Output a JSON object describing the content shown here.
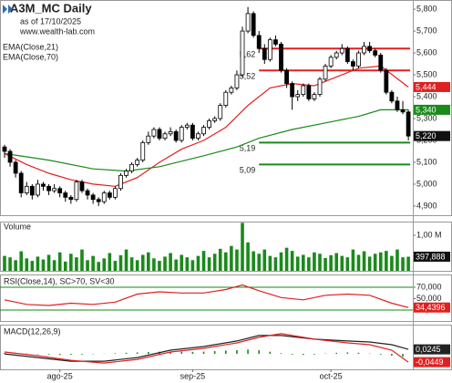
{
  "header": {
    "title": "A3M_MC Daily",
    "asof": "as of 17/10/2025",
    "site": "www.wealth-lab.com",
    "legend": [
      "EMA(Close,21)",
      "EMA(Close,70)"
    ]
  },
  "xlabels": [
    {
      "index": 10,
      "label": "ago-25"
    },
    {
      "index": 34,
      "label": "sep-25"
    },
    {
      "index": 59,
      "label": "oct-25"
    }
  ],
  "chart_data": [
    {
      "type": "candlestick",
      "ylim": [
        4.858,
        5.842
      ],
      "yticks": [
        {
          "value": 5.8,
          "label": "5,800"
        },
        {
          "value": 5.7,
          "label": "5,700"
        },
        {
          "value": 5.6,
          "label": "5,600"
        },
        {
          "value": 5.5,
          "label": "5,500"
        },
        {
          "value": 5.4,
          "label": "5,400"
        },
        {
          "value": 5.3,
          "label": "5,300"
        },
        {
          "value": 5.2,
          "label": "5,200"
        },
        {
          "value": 5.1,
          "label": "5,100"
        },
        {
          "value": 5.0,
          "label": "5,000"
        },
        {
          "value": 4.9,
          "label": "4,900"
        }
      ],
      "candles": [
        [
          5.17,
          5.18,
          5.12,
          5.15
        ],
        [
          5.15,
          5.16,
          5.08,
          5.1
        ],
        [
          5.1,
          5.11,
          5.03,
          5.05
        ],
        [
          5.05,
          5.06,
          4.94,
          4.96
        ],
        [
          4.96,
          5.01,
          4.95,
          4.99
        ],
        [
          4.99,
          5.0,
          4.93,
          4.95
        ],
        [
          4.95,
          5.02,
          4.94,
          5.0
        ],
        [
          5.0,
          5.01,
          4.97,
          4.99
        ],
        [
          4.99,
          5.0,
          4.95,
          4.97
        ],
        [
          4.97,
          5.0,
          4.96,
          4.98
        ],
        [
          4.98,
          4.99,
          4.94,
          4.96
        ],
        [
          4.96,
          4.97,
          4.92,
          4.94
        ],
        [
          4.94,
          4.95,
          4.91,
          4.93
        ],
        [
          4.93,
          5.02,
          4.92,
          5.01
        ],
        [
          5.01,
          5.02,
          4.96,
          4.97
        ],
        [
          4.97,
          4.98,
          4.93,
          4.95
        ],
        [
          4.95,
          4.96,
          4.91,
          4.93
        ],
        [
          4.93,
          4.94,
          4.9,
          4.92
        ],
        [
          4.92,
          4.97,
          4.91,
          4.96
        ],
        [
          4.96,
          4.97,
          4.93,
          4.94
        ],
        [
          4.94,
          4.99,
          4.93,
          4.98
        ],
        [
          4.98,
          5.05,
          4.97,
          5.04
        ],
        [
          5.04,
          5.07,
          5.03,
          5.06
        ],
        [
          5.06,
          5.1,
          5.05,
          5.09
        ],
        [
          5.09,
          5.12,
          5.08,
          5.11
        ],
        [
          5.11,
          5.2,
          5.1,
          5.19
        ],
        [
          5.19,
          5.24,
          5.18,
          5.22
        ],
        [
          5.22,
          5.26,
          5.21,
          5.25
        ],
        [
          5.25,
          5.26,
          5.2,
          5.21
        ],
        [
          5.21,
          5.24,
          5.2,
          5.23
        ],
        [
          5.23,
          5.26,
          5.22,
          5.24
        ],
        [
          5.24,
          5.25,
          5.19,
          5.2
        ],
        [
          5.2,
          5.27,
          5.19,
          5.26
        ],
        [
          5.26,
          5.28,
          5.25,
          5.27
        ],
        [
          5.27,
          5.28,
          5.2,
          5.21
        ],
        [
          5.21,
          5.24,
          5.2,
          5.23
        ],
        [
          5.23,
          5.27,
          5.22,
          5.26
        ],
        [
          5.26,
          5.3,
          5.25,
          5.29
        ],
        [
          5.29,
          5.31,
          5.28,
          5.3
        ],
        [
          5.3,
          5.37,
          5.29,
          5.36
        ],
        [
          5.36,
          5.43,
          5.35,
          5.42
        ],
        [
          5.42,
          5.45,
          5.41,
          5.44
        ],
        [
          5.44,
          5.52,
          5.43,
          5.5
        ],
        [
          5.5,
          5.72,
          5.49,
          5.7
        ],
        [
          5.7,
          5.81,
          5.69,
          5.78
        ],
        [
          5.78,
          5.79,
          5.67,
          5.68
        ],
        [
          5.68,
          5.7,
          5.6,
          5.62
        ],
        [
          5.62,
          5.64,
          5.55,
          5.57
        ],
        [
          5.57,
          5.67,
          5.56,
          5.66
        ],
        [
          5.66,
          5.68,
          5.63,
          5.64
        ],
        [
          5.64,
          5.65,
          5.51,
          5.52
        ],
        [
          5.52,
          5.53,
          5.44,
          5.46
        ],
        [
          5.46,
          5.47,
          5.34,
          5.4
        ],
        [
          5.4,
          5.43,
          5.38,
          5.41
        ],
        [
          5.41,
          5.46,
          5.4,
          5.45
        ],
        [
          5.45,
          5.46,
          5.38,
          5.39
        ],
        [
          5.39,
          5.42,
          5.38,
          5.41
        ],
        [
          5.41,
          5.49,
          5.4,
          5.48
        ],
        [
          5.48,
          5.55,
          5.47,
          5.54
        ],
        [
          5.54,
          5.59,
          5.53,
          5.58
        ],
        [
          5.58,
          5.61,
          5.57,
          5.6
        ],
        [
          5.6,
          5.64,
          5.59,
          5.62
        ],
        [
          5.62,
          5.63,
          5.55,
          5.56
        ],
        [
          5.56,
          5.57,
          5.52,
          5.54
        ],
        [
          5.54,
          5.61,
          5.53,
          5.6
        ],
        [
          5.6,
          5.65,
          5.59,
          5.63
        ],
        [
          5.63,
          5.65,
          5.6,
          5.61
        ],
        [
          5.61,
          5.62,
          5.58,
          5.59
        ],
        [
          5.59,
          5.6,
          5.51,
          5.52
        ],
        [
          5.52,
          5.53,
          5.41,
          5.42
        ],
        [
          5.42,
          5.43,
          5.37,
          5.38
        ],
        [
          5.38,
          5.4,
          5.33,
          5.34
        ],
        [
          5.34,
          5.38,
          5.32,
          5.33
        ],
        [
          5.33,
          5.34,
          5.2,
          5.22
        ]
      ],
      "last_label": "5,220",
      "series": [
        {
          "name": "EMA(Close,21)",
          "color": "#e02020",
          "x": [
            0,
            4,
            8,
            12,
            16,
            20,
            24,
            28,
            32,
            36,
            40,
            44,
            48,
            52,
            56,
            60,
            64,
            68,
            73
          ],
          "values": [
            5.14,
            5.09,
            5.05,
            5.02,
            5.0,
            4.99,
            5.03,
            5.1,
            5.16,
            5.2,
            5.26,
            5.36,
            5.44,
            5.46,
            5.45,
            5.49,
            5.53,
            5.54,
            5.444
          ],
          "last_label": "5,444"
        },
        {
          "name": "EMA(Close,70)",
          "color": "#1a8a1a",
          "x": [
            0,
            8,
            16,
            22,
            28,
            36,
            42,
            46,
            52,
            58,
            64,
            68,
            73
          ],
          "values": [
            5.14,
            5.11,
            5.07,
            5.06,
            5.08,
            5.13,
            5.17,
            5.21,
            5.25,
            5.28,
            5.31,
            5.34,
            5.34
          ],
          "last_label": "5,340"
        }
      ],
      "levels": [
        {
          "value": 5.62,
          "label": "5,62",
          "color": "#e02020",
          "start": 46
        },
        {
          "value": 5.52,
          "label": "5,52",
          "color": "#e02020",
          "start": 46
        },
        {
          "value": 5.19,
          "label": "5,19",
          "color": "#1a8a1a",
          "start": 46
        },
        {
          "value": 5.09,
          "label": "5,09",
          "color": "#1a8a1a",
          "start": 46
        }
      ]
    },
    {
      "type": "volume",
      "title": "Volume",
      "color": "#1a8a1a",
      "ylim": [
        0,
        1385000
      ],
      "yticks": [
        {
          "value": 1000000,
          "label": "1,00 M"
        }
      ],
      "values": [
        420000,
        380000,
        300000,
        550000,
        350000,
        280000,
        400000,
        320000,
        450000,
        300000,
        520000,
        260000,
        480000,
        380000,
        600000,
        300000,
        420000,
        250000,
        350000,
        500000,
        280000,
        440000,
        600000,
        380000,
        300000,
        450000,
        520000,
        350000,
        280000,
        400000,
        500000,
        320000,
        450000,
        380000,
        300000,
        420000,
        560000,
        380000,
        480000,
        620000,
        520000,
        700000,
        600000,
        1350000,
        800000,
        550000,
        480000,
        600000,
        420000,
        380000,
        520000,
        650000,
        560000,
        400000,
        450000,
        380000,
        520000,
        480000,
        360000,
        440000,
        500000,
        420000,
        380000,
        600000,
        450000,
        550000,
        400000,
        480000,
        520000,
        560000,
        420000,
        600000,
        380000,
        397888
      ],
      "last_label": "397,888"
    },
    {
      "type": "rsi",
      "title": "RSI(Close,14), SC>70, SV<30",
      "ylim": [
        10.8,
        92.4
      ],
      "yticks": [
        {
          "value": 70,
          "label": "70,000"
        },
        {
          "value": 50,
          "label": "50,000"
        },
        {
          "value": 30,
          "label": "30,000"
        }
      ],
      "upper": 70,
      "lower": 30,
      "band_color": "#1a8a1a",
      "series": [
        {
          "color": "#e02020",
          "x": [
            0,
            4,
            8,
            12,
            16,
            20,
            24,
            28,
            32,
            36,
            40,
            43,
            46,
            50,
            54,
            58,
            62,
            66,
            70,
            73
          ],
          "values": [
            48,
            40,
            38,
            42,
            40,
            44,
            58,
            62,
            60,
            60,
            66,
            74,
            64,
            52,
            48,
            56,
            58,
            56,
            42,
            34.4396
          ],
          "last_label": "34,4396"
        }
      ]
    },
    {
      "type": "macd",
      "title": "MACD(12,26,9)",
      "ylim": [
        -0.084,
        0.159
      ],
      "series": [
        {
          "color": "#222222",
          "x": [
            0,
            6,
            12,
            18,
            24,
            30,
            36,
            42,
            46,
            50,
            56,
            62,
            66,
            70,
            73
          ],
          "values": [
            0.0,
            -0.02,
            -0.04,
            -0.04,
            -0.02,
            0.02,
            0.04,
            0.07,
            0.1,
            0.1,
            0.08,
            0.07,
            0.065,
            0.05,
            0.0245
          ],
          "last_label": "0,0245"
        },
        {
          "color": "#e02020",
          "x": [
            0,
            6,
            12,
            18,
            24,
            30,
            36,
            42,
            46,
            50,
            56,
            62,
            66,
            70,
            73
          ],
          "values": [
            0.01,
            -0.01,
            -0.035,
            -0.05,
            -0.03,
            0.01,
            0.03,
            0.06,
            0.09,
            0.11,
            0.08,
            0.06,
            0.05,
            0.02,
            -0.0449
          ],
          "last_label": "-0,0449"
        }
      ],
      "histogram": {
        "color": "#1a8a1a",
        "x": [
          0,
          2,
          4,
          6,
          8,
          10,
          12,
          14,
          16,
          18,
          20,
          22,
          24,
          26,
          28,
          30,
          32,
          34,
          36,
          38,
          40,
          42,
          44,
          46,
          48,
          50,
          52,
          54,
          56,
          58,
          60,
          62,
          64,
          66,
          68,
          70,
          72
        ],
        "values": [
          0.005,
          0.004,
          0.002,
          -0.002,
          -0.004,
          -0.006,
          -0.005,
          -0.004,
          -0.002,
          0.001,
          0.003,
          0.006,
          0.008,
          0.01,
          0.012,
          0.013,
          0.012,
          0.011,
          0.012,
          0.015,
          0.018,
          0.02,
          0.024,
          0.02,
          0.012,
          0.004,
          -0.004,
          -0.006,
          -0.004,
          0.002,
          0.006,
          0.008,
          0.006,
          0.002,
          -0.004,
          -0.01,
          -0.015
        ]
      }
    }
  ]
}
